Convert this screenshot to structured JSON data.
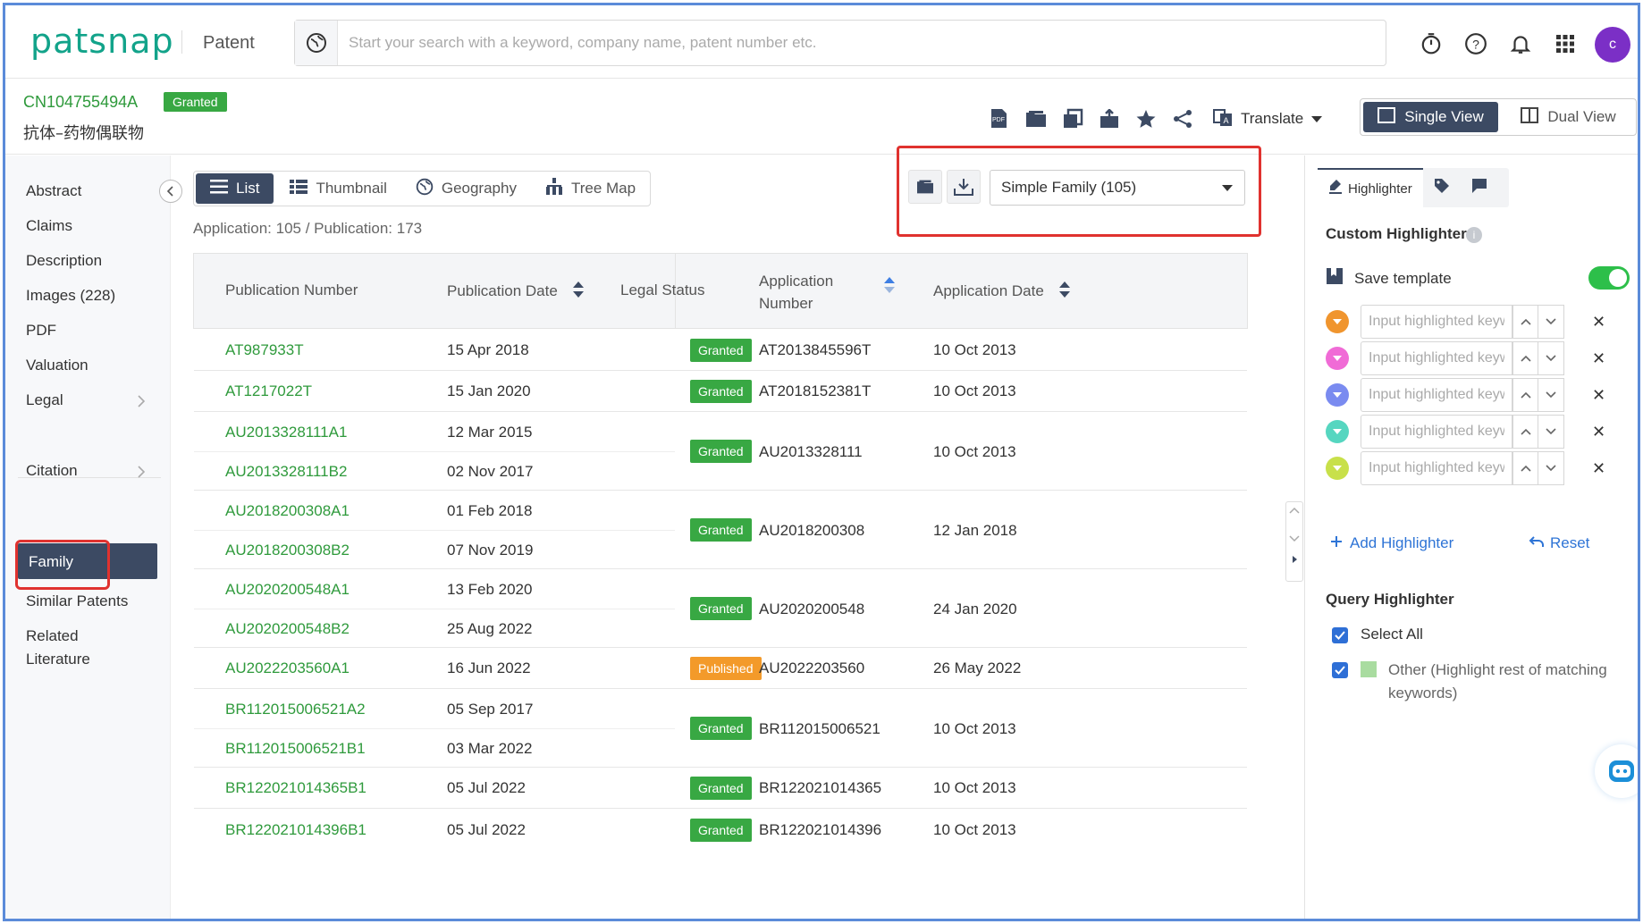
{
  "header": {
    "logo": "patsnap",
    "product": "Patent",
    "search_placeholder": "Start your search with a keyword, company name, patent number etc.",
    "avatar_initial": "c",
    "icons": [
      "timer-icon",
      "help-icon",
      "bell-icon",
      "apps-grid-icon"
    ]
  },
  "patent": {
    "number": "CN104755494A",
    "status": "Granted",
    "title": "抗体–药物偶联物"
  },
  "toolbar": {
    "icons": [
      "pdf-icon",
      "folder-icon",
      "copy-icon",
      "export-icon",
      "star-icon",
      "share-icon"
    ],
    "translate_label": "Translate",
    "single_view": "Single View",
    "dual_view": "Dual View"
  },
  "nav": {
    "items": [
      {
        "label": "Abstract"
      },
      {
        "label": "Claims"
      },
      {
        "label": "Description"
      },
      {
        "label": "Images (228)"
      },
      {
        "label": "PDF"
      },
      {
        "label": "Valuation"
      },
      {
        "label": "Legal"
      },
      {
        "label": "Citation"
      },
      {
        "label": "Family"
      },
      {
        "label": "Similar Patents"
      },
      {
        "label": "Related"
      },
      {
        "label": "Literature"
      }
    ]
  },
  "content": {
    "tabs": [
      {
        "label": "List"
      },
      {
        "label": "Thumbnail"
      },
      {
        "label": "Geography"
      },
      {
        "label": "Tree Map"
      }
    ],
    "summary": "Application: 105 / Publication: 173",
    "family_select": "Simple Family (105)"
  },
  "table": {
    "columns": [
      "Publication Number",
      "Publication Date",
      "Legal Status",
      "Application",
      "Number",
      "Application Date"
    ],
    "rows": [
      {
        "pub": "AT987933T",
        "pubdate": "15 Apr 2018",
        "status": "Granted",
        "app": "AT2013845596T",
        "appdate": "10 Oct 2013"
      },
      {
        "pub": "AT1217022T",
        "pubdate": "15 Jan 2020",
        "status": "Granted",
        "app": "AT2018152381T",
        "appdate": "10 Oct 2013"
      },
      {
        "pub": "AU2013328111A1",
        "pubdate": "12 Mar 2015",
        "pub2": "AU2013328111B2",
        "pubdate2": "02 Nov 2017",
        "status": "Granted",
        "app": "AU2013328111",
        "appdate": "10 Oct 2013"
      },
      {
        "pub": "AU2018200308A1",
        "pubdate": "01 Feb 2018",
        "pub2": "AU2018200308B2",
        "pubdate2": "07 Nov 2019",
        "status": "Granted",
        "app": "AU2018200308",
        "appdate": "12 Jan 2018"
      },
      {
        "pub": "AU2020200548A1",
        "pubdate": "13 Feb 2020",
        "pub2": "AU2020200548B2",
        "pubdate2": "25 Aug 2022",
        "status": "Granted",
        "app": "AU2020200548",
        "appdate": "24 Jan 2020"
      },
      {
        "pub": "AU2022203560A1",
        "pubdate": "16 Jun 2022",
        "status": "Published",
        "app": "AU2022203560",
        "appdate": "26 May 2022"
      },
      {
        "pub": "BR112015006521A2",
        "pubdate": "05 Sep 2017",
        "pub2": "BR112015006521B1",
        "pubdate2": "03 Mar 2022",
        "status": "Granted",
        "app": "BR112015006521",
        "appdate": "10 Oct 2013"
      },
      {
        "pub": "BR122021014365B1",
        "pubdate": "05 Jul 2022",
        "status": "Granted",
        "app": "BR122021014365",
        "appdate": "10 Oct 2013"
      },
      {
        "pub": "BR122021014396B1",
        "pubdate": "05 Jul 2022",
        "status": "Granted",
        "app": "BR122021014396",
        "appdate": "10 Oct 2013"
      }
    ]
  },
  "highlighter": {
    "tab_label": "Highlighter",
    "custom_title": "Custom Highlighter",
    "save_template": "Save template",
    "input_placeholder": "Input highlighted keywords",
    "dot_colors": [
      "#f0952e",
      "#f06bd6",
      "#7a8bf0",
      "#56d6c0",
      "#c8e04a"
    ],
    "add_label": "Add Highlighter",
    "reset_label": "Reset",
    "query_title": "Query Highlighter",
    "select_all": "Select All",
    "other_label": "Other (Highlight rest of matching keywords)"
  }
}
